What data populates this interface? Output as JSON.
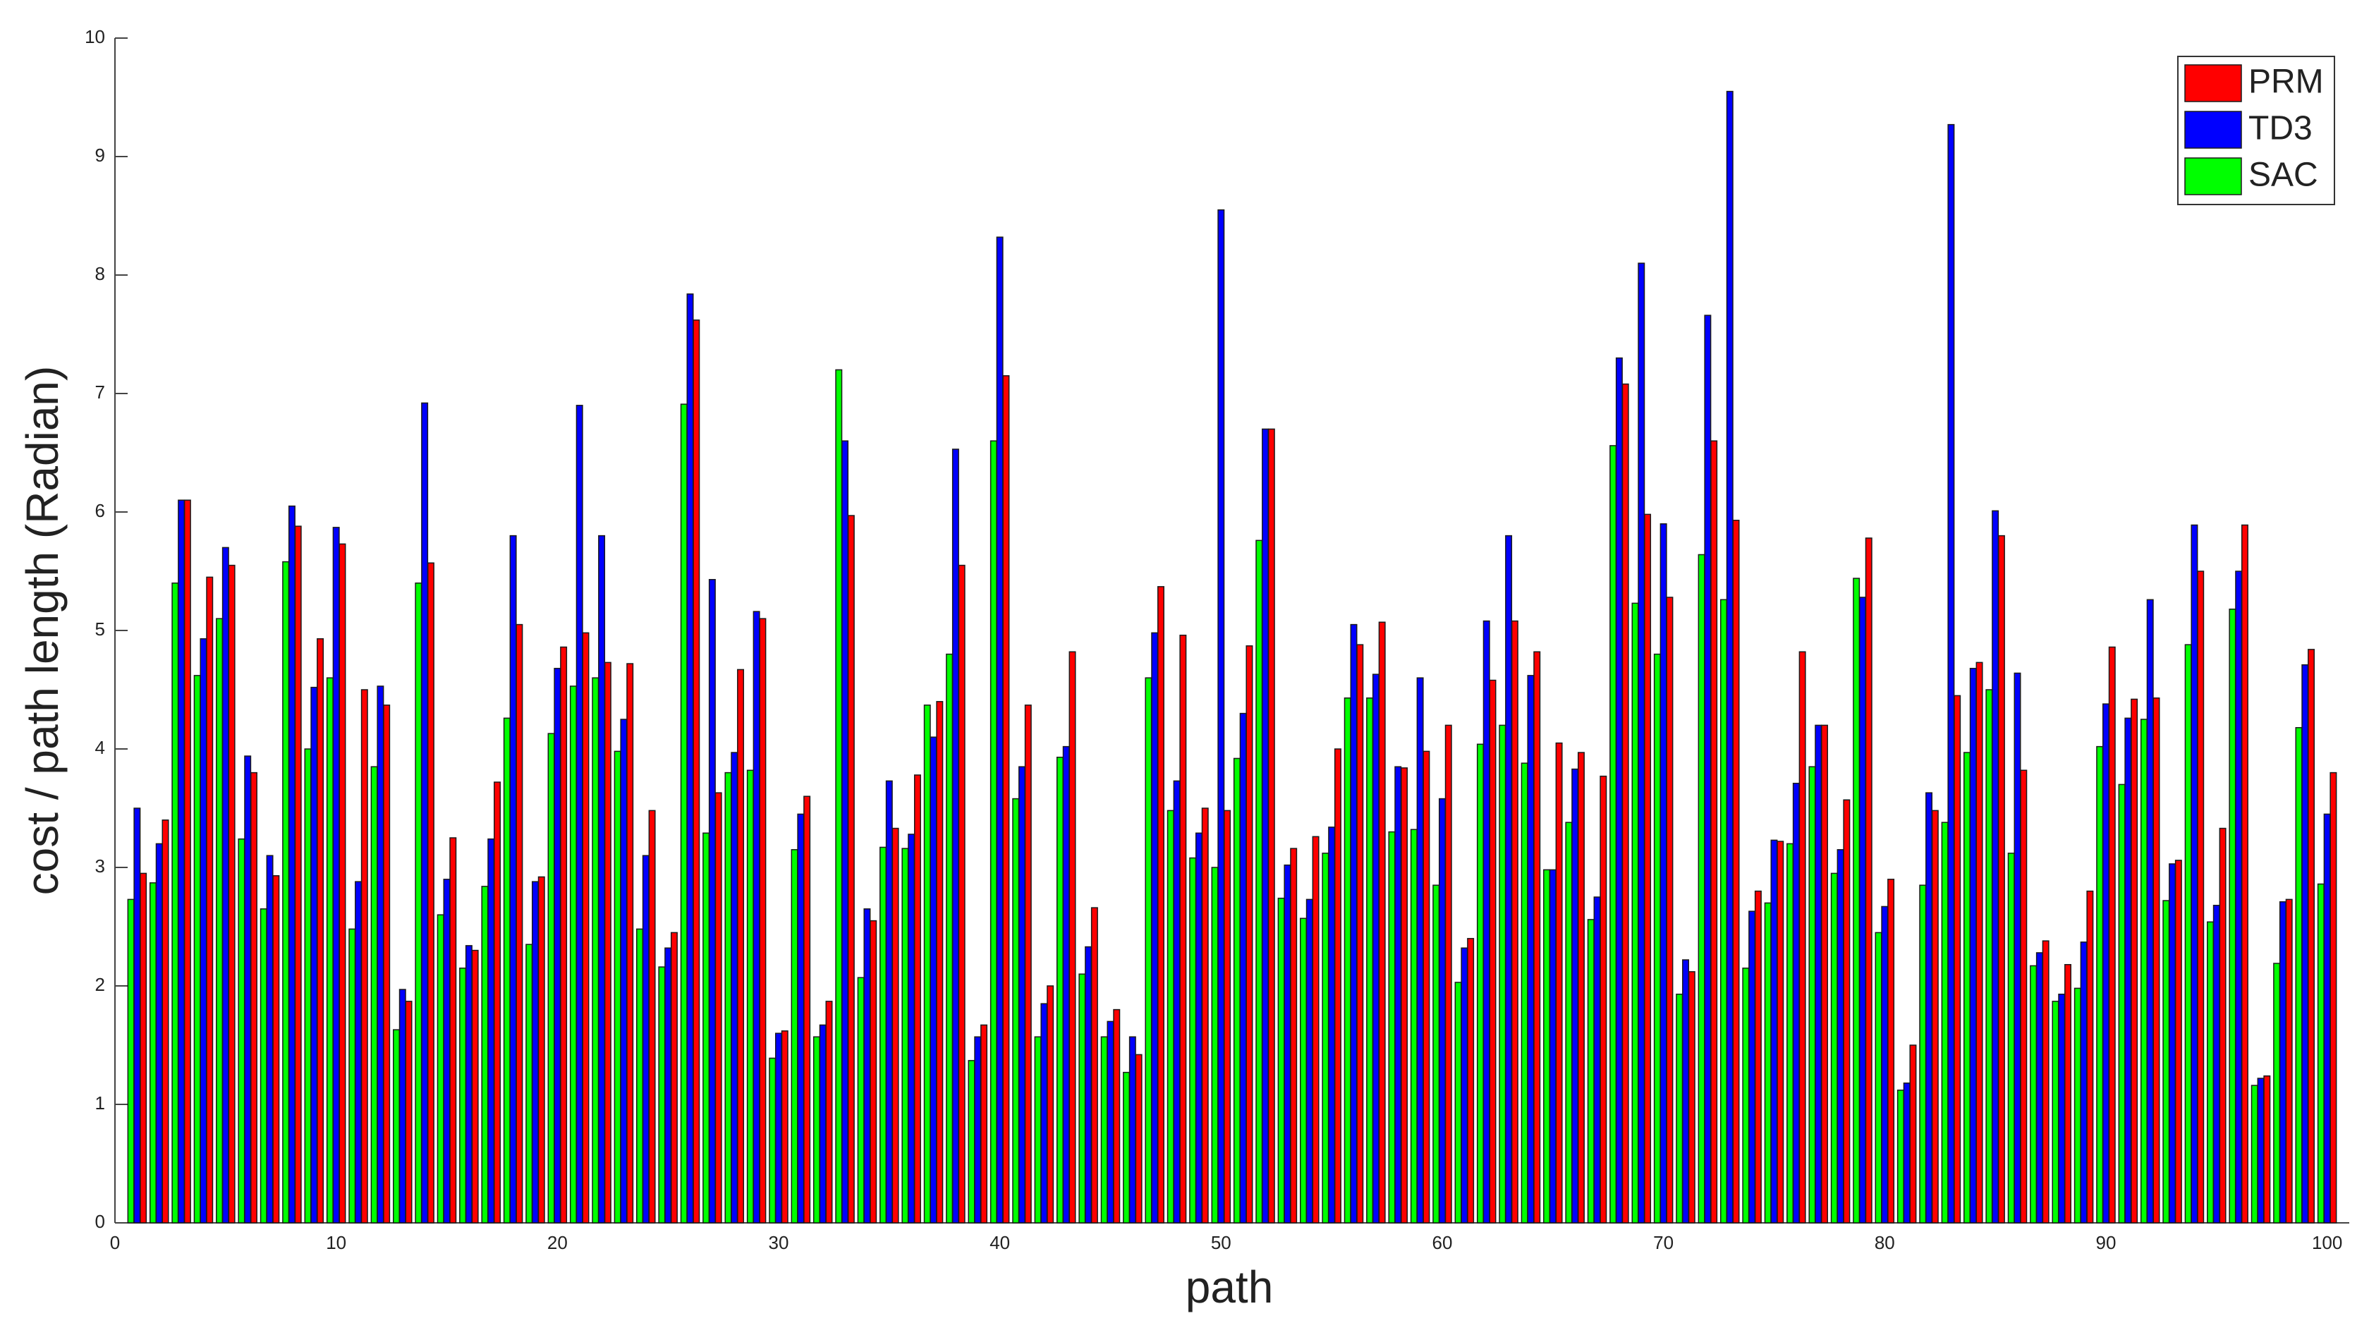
{
  "chart_data": {
    "type": "bar",
    "xlabel": "path",
    "ylabel": "cost / path length (Radian)",
    "x": [
      1,
      2,
      3,
      4,
      5,
      6,
      7,
      8,
      9,
      10,
      11,
      12,
      13,
      14,
      15,
      16,
      17,
      18,
      19,
      20,
      21,
      22,
      23,
      24,
      25,
      26,
      27,
      28,
      29,
      30,
      31,
      32,
      33,
      34,
      35,
      36,
      37,
      38,
      39,
      40,
      41,
      42,
      43,
      44,
      45,
      46,
      47,
      48,
      49,
      50,
      51,
      52,
      53,
      54,
      55,
      56,
      57,
      58,
      59,
      60,
      61,
      62,
      63,
      64,
      65,
      66,
      67,
      68,
      69,
      70,
      71,
      72,
      73,
      74,
      75,
      76,
      77,
      78,
      79,
      80,
      81,
      82,
      83,
      84,
      85,
      86,
      87,
      88,
      89,
      90,
      91,
      92,
      93,
      94,
      95,
      96,
      97,
      98,
      99,
      100
    ],
    "series": [
      {
        "name": "PRM",
        "color": "#ff0000",
        "values": [
          2.95,
          3.4,
          6.1,
          5.45,
          5.55,
          3.8,
          2.93,
          5.88,
          4.93,
          5.73,
          4.5,
          4.37,
          1.87,
          5.57,
          3.25,
          2.3,
          3.72,
          5.05,
          2.92,
          4.86,
          4.98,
          4.73,
          4.72,
          3.48,
          2.45,
          7.62,
          3.63,
          4.67,
          5.1,
          1.62,
          3.6,
          1.87,
          5.97,
          2.55,
          3.33,
          3.78,
          4.4,
          5.55,
          1.67,
          7.15,
          4.37,
          2.0,
          4.82,
          2.66,
          1.8,
          1.42,
          5.37,
          4.96,
          3.5,
          3.48,
          4.87,
          6.7,
          3.16,
          3.26,
          4.0,
          4.88,
          5.07,
          3.84,
          3.98,
          4.2,
          2.4,
          4.58,
          5.08,
          4.82,
          4.05,
          3.97,
          3.77,
          7.08,
          5.98,
          5.28,
          2.12,
          6.6,
          5.93,
          2.8,
          3.22,
          4.82,
          4.2,
          3.57,
          5.78,
          2.9,
          1.5,
          3.48,
          4.45,
          4.73,
          5.8,
          3.82,
          2.38,
          2.18,
          2.8,
          4.86,
          4.42,
          4.43,
          3.06,
          5.5,
          3.33,
          5.89,
          1.24,
          2.73,
          4.84,
          3.8
        ]
      },
      {
        "name": "TD3",
        "color": "#0000ff",
        "values": [
          3.5,
          3.2,
          6.1,
          4.93,
          5.7,
          3.94,
          3.1,
          6.05,
          4.52,
          5.87,
          2.88,
          4.53,
          1.97,
          6.92,
          2.9,
          2.34,
          3.24,
          5.8,
          2.88,
          4.68,
          6.9,
          5.8,
          4.25,
          3.1,
          2.32,
          7.84,
          5.43,
          3.97,
          5.16,
          1.6,
          3.45,
          1.67,
          6.6,
          2.65,
          3.73,
          3.28,
          4.1,
          6.53,
          1.57,
          8.32,
          3.85,
          1.85,
          4.02,
          2.33,
          1.7,
          1.57,
          4.98,
          3.73,
          3.29,
          8.55,
          4.3,
          6.7,
          3.02,
          2.73,
          3.34,
          5.05,
          4.63,
          3.85,
          4.6,
          3.58,
          2.32,
          5.08,
          5.8,
          4.62,
          2.98,
          3.83,
          2.75,
          7.3,
          8.1,
          5.9,
          2.22,
          7.66,
          9.55,
          2.63,
          3.23,
          3.71,
          4.2,
          3.15,
          5.28,
          2.67,
          1.18,
          3.63,
          9.27,
          4.68,
          6.01,
          4.64,
          2.28,
          1.93,
          2.37,
          4.38,
          4.26,
          5.26,
          3.03,
          5.89,
          2.68,
          5.5,
          1.22,
          2.71,
          4.71,
          3.45
        ]
      },
      {
        "name": "SAC",
        "color": "#00ff00",
        "values": [
          2.73,
          2.87,
          5.4,
          4.62,
          5.1,
          3.24,
          2.65,
          5.58,
          4.0,
          4.6,
          2.48,
          3.85,
          1.63,
          5.4,
          2.6,
          2.15,
          2.84,
          4.26,
          2.35,
          4.13,
          4.53,
          4.6,
          3.98,
          2.48,
          2.16,
          6.91,
          3.29,
          3.8,
          3.82,
          1.39,
          3.15,
          1.57,
          7.2,
          2.07,
          3.17,
          3.16,
          4.37,
          4.8,
          1.37,
          6.6,
          3.58,
          1.57,
          3.93,
          2.1,
          1.57,
          1.27,
          4.6,
          3.48,
          3.08,
          3.0,
          3.92,
          5.76,
          2.74,
          2.57,
          3.12,
          4.43,
          4.43,
          3.3,
          3.32,
          2.85,
          2.03,
          4.04,
          4.2,
          3.88,
          2.98,
          3.38,
          2.56,
          6.56,
          5.23,
          4.8,
          1.93,
          5.64,
          5.26,
          2.15,
          2.7,
          3.2,
          3.85,
          2.95,
          5.44,
          2.45,
          1.12,
          2.85,
          3.38,
          3.97,
          4.5,
          3.12,
          2.17,
          1.87,
          1.98,
          4.02,
          3.7,
          4.25,
          2.72,
          4.88,
          2.54,
          5.18,
          1.16,
          2.19,
          4.18,
          2.86
        ]
      }
    ],
    "xlim": [
      0,
      101
    ],
    "xticks": [
      0,
      10,
      20,
      30,
      40,
      50,
      60,
      70,
      80,
      90,
      100
    ],
    "ylim": [
      0,
      10
    ],
    "yticks": [
      0,
      1,
      2,
      3,
      4,
      5,
      6,
      7,
      8,
      9,
      10
    ],
    "legend": "northeast"
  }
}
